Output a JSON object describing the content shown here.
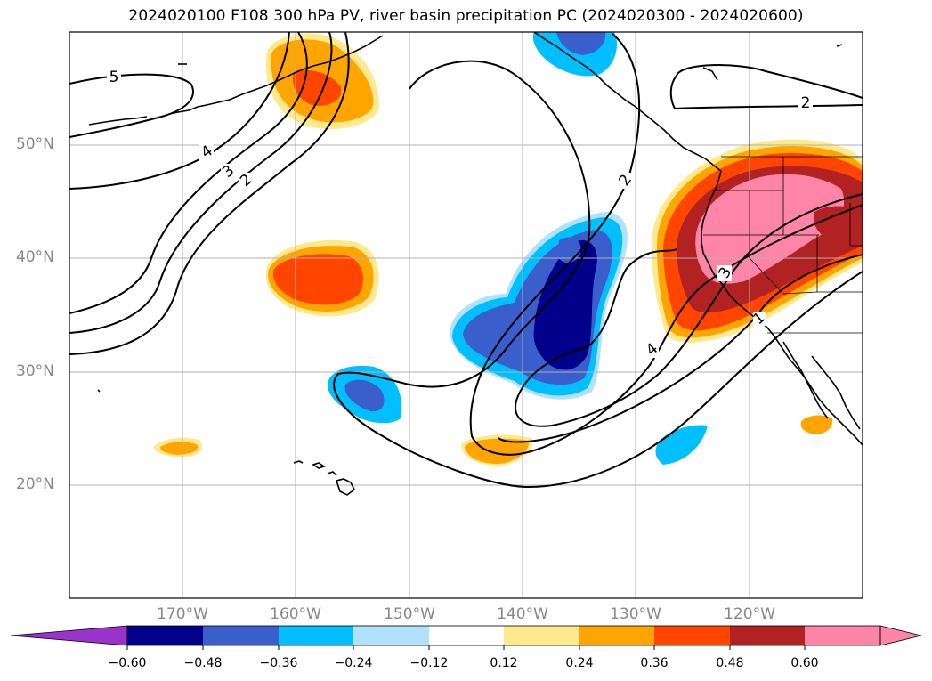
{
  "title": "2024020100 F108 300 hPa PV, river basin precipitation PC (2024020300 - 2024020600)",
  "lat_labels": [
    "50°N",
    "40°N",
    "30°N",
    "20°N"
  ],
  "lon_labels": [
    "170°W",
    "160°W",
    "150°W",
    "140°W",
    "130°W",
    "120°W"
  ],
  "contour_labels": [
    "5",
    "4",
    "3",
    "2",
    "2",
    "2",
    "3",
    "4",
    "1"
  ],
  "colorbar": {
    "labels": [
      "−0.60",
      "−0.48",
      "−0.36",
      "−0.24",
      "−0.12",
      "0.12",
      "0.24",
      "0.36",
      "0.48",
      "0.60"
    ],
    "colors": [
      "#9a33cc",
      "#00008b",
      "#3a5fcd",
      "#00bfff",
      "#b0e2ff",
      "#ffffff",
      "#ffe98c",
      "#ffa500",
      "#ff4500",
      "#b22222",
      "#ff85a8"
    ]
  },
  "shading_colors": {
    "neg_060": "#00008b",
    "neg_048": "#3a5fcd",
    "neg_036": "#00bfff",
    "neg_024": "#b0e2ff",
    "pos_012": "#ffe98c",
    "pos_024": "#ffa500",
    "pos_036": "#ff4500",
    "pos_048": "#b22222",
    "pos_060": "#ff85a8"
  }
}
